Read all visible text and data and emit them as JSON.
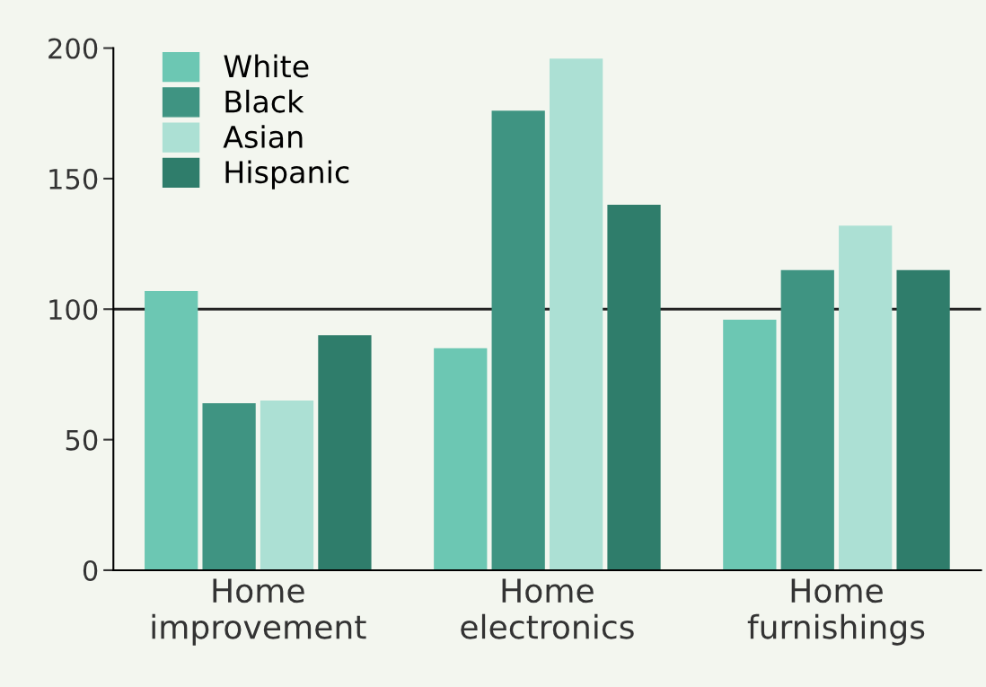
{
  "chart_data": {
    "type": "bar",
    "categories": [
      "Home\nimprovement",
      "Home\nelectronics",
      "Home\nfurnishings"
    ],
    "series": [
      {
        "name": "White",
        "color": "#6cc7b3",
        "values": [
          107,
          85,
          96
        ]
      },
      {
        "name": "Black",
        "color": "#3f9482",
        "values": [
          64,
          176,
          115
        ]
      },
      {
        "name": "Asian",
        "color": "#ace0d4",
        "values": [
          65,
          196,
          132
        ]
      },
      {
        "name": "Hispanic",
        "color": "#2f7d6b",
        "values": [
          90,
          140,
          115
        ]
      }
    ],
    "ylim": [
      0,
      200
    ],
    "yticks": [
      0,
      50,
      100,
      150,
      200
    ],
    "grid": false,
    "legend": "top left",
    "ref_lines": [
      {
        "axis": "y",
        "value": 100,
        "color": "#222222"
      }
    ]
  }
}
